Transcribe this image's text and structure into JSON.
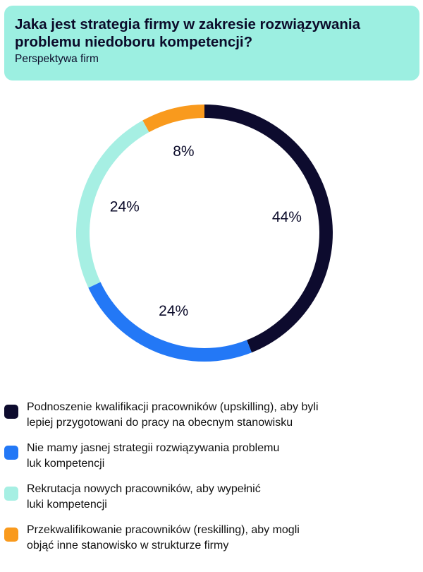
{
  "header": {
    "title": "Jaka jest strategia firmy w zakresie rozwiązywania problemu niedoboru kompetencji?",
    "subtitle": "Perspektywa firm"
  },
  "colors": {
    "header_bg": "#9cefe1",
    "upskilling": "#0d0b2e",
    "no_strategy": "#2378f6",
    "recruitment": "#a6efe3",
    "reskilling": "#f99a1d"
  },
  "chart_data": {
    "type": "pie",
    "style": "donut",
    "slices": [
      {
        "label": "Podnoszenie kwalifikacji pracowników (upskilling), aby byli lepiej przygotowani do pracy na obecnym stanowisku",
        "value": 44,
        "display": "44%",
        "color": "#0d0b2e"
      },
      {
        "label": "Nie mamy jasnej strategii rozwiązywania problemu luk kompetencji",
        "value": 24,
        "display": "24%",
        "color": "#2378f6"
      },
      {
        "label": "Rekrutacja nowych pracowników, aby wypełnić luki kompetencji",
        "value": 24,
        "display": "24%",
        "color": "#a6efe3"
      },
      {
        "label": "Przekwalifikowanie pracowników (reskilling), aby mogli objąć inne stanowisko w strukturze firmy",
        "value": 8,
        "display": "8%",
        "color": "#f99a1d"
      }
    ],
    "legend_position": "bottom"
  },
  "legend": {
    "items": [
      {
        "lines": [
          "Podnoszenie kwalifikacji pracowników (upskilling), aby byli",
          "lepiej przygotowani do pracy na obecnym stanowisku"
        ]
      },
      {
        "lines": [
          "Nie mamy jasnej strategii rozwiązywania problemu",
          "luk kompetencji"
        ]
      },
      {
        "lines": [
          "Rekrutacja nowych pracowników, aby wypełnić",
          "luki kompetencji"
        ]
      },
      {
        "lines": [
          "Przekwalifikowanie pracowników (reskilling), aby mogli",
          "objąć inne stanowisko w strukturze firmy"
        ]
      }
    ]
  }
}
